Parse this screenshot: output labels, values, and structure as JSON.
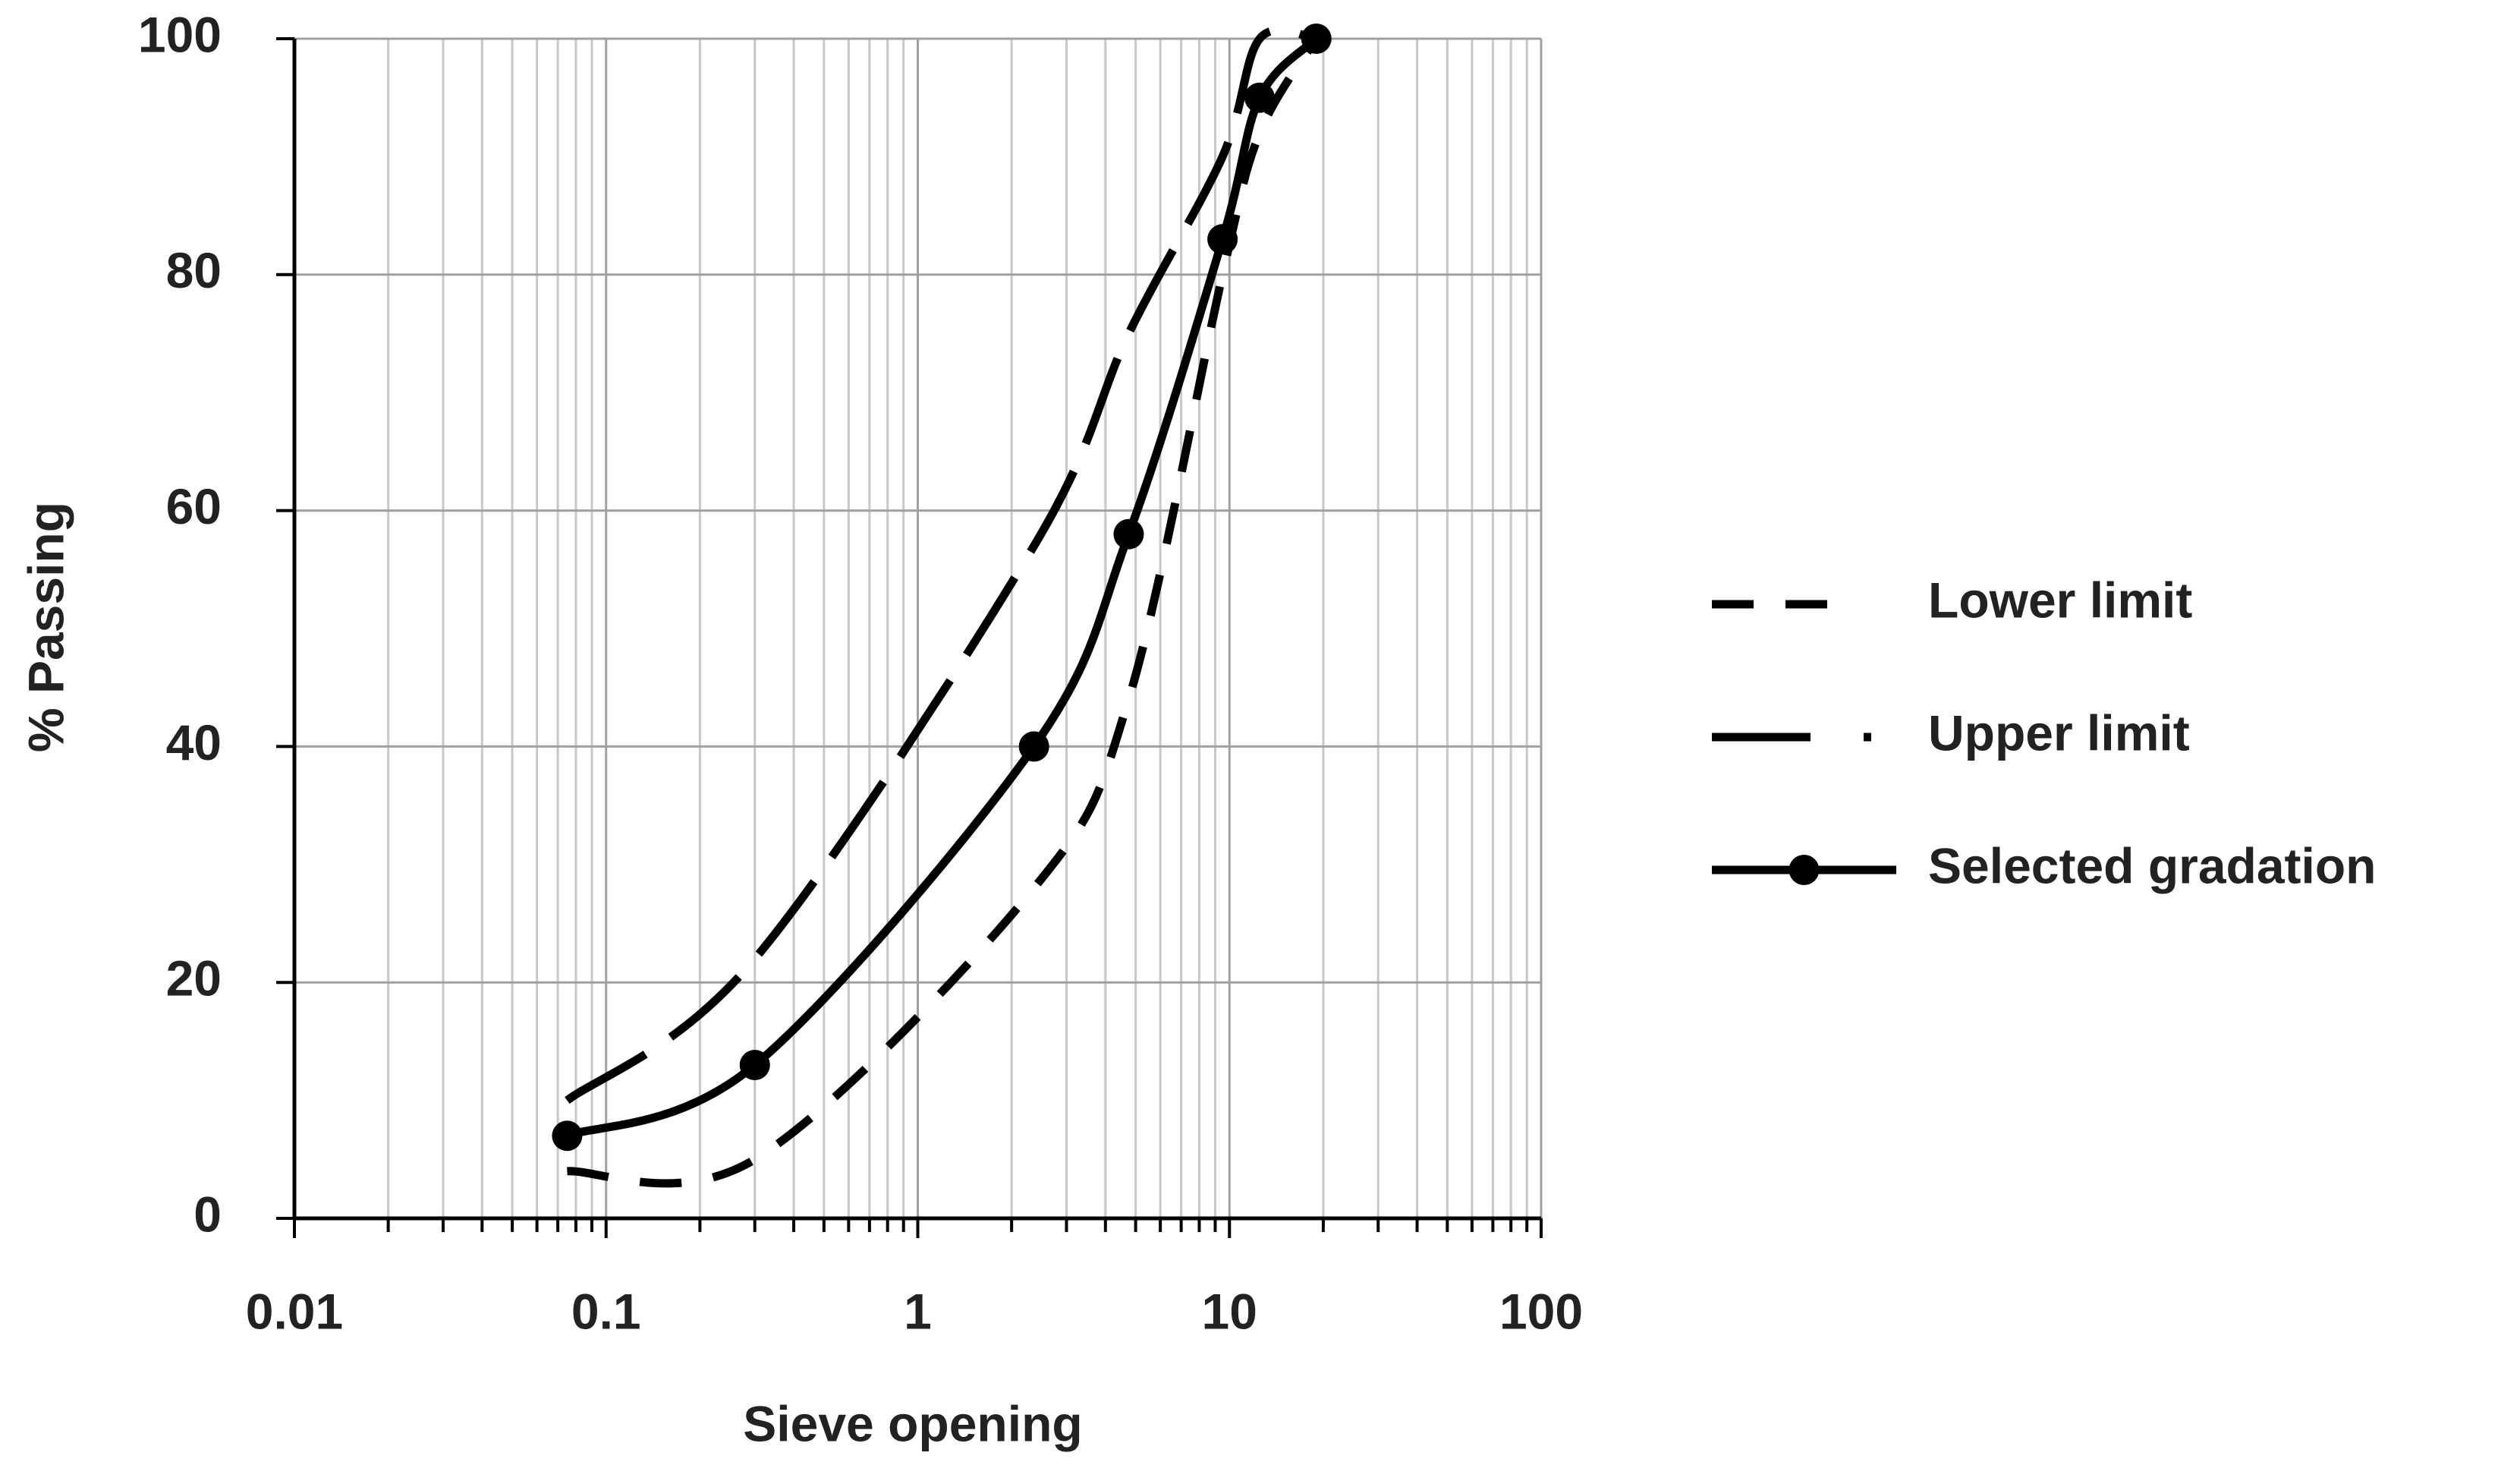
{
  "chart_data": {
    "type": "line",
    "x_label": "Sieve opening",
    "y_label": "% Passing",
    "xscale": "log",
    "xlim": [
      0.01,
      100
    ],
    "xticks": [
      0.01,
      0.1,
      1,
      10,
      100
    ],
    "ylim": [
      0,
      100
    ],
    "yticks": [
      0,
      20,
      40,
      60,
      80,
      100
    ],
    "grid": true,
    "legend": "right",
    "x": [
      0.075,
      0.3,
      2.36,
      4.75,
      9.5,
      12.5,
      19
    ],
    "series": [
      {
        "name": "Lower limit",
        "color": "#000000",
        "style": "dashed",
        "values": [
          4,
          5,
          28,
          44,
          80,
          92,
          100
        ]
      },
      {
        "name": "Upper limit",
        "color": "#000000",
        "style": "dash-dot",
        "values": [
          10,
          22,
          57,
          75,
          90,
          100,
          100
        ]
      },
      {
        "name": "Selected gradation",
        "color": "#000000",
        "style": "solid-marker",
        "values": [
          7,
          13,
          40,
          58,
          83,
          95,
          100
        ]
      }
    ]
  }
}
